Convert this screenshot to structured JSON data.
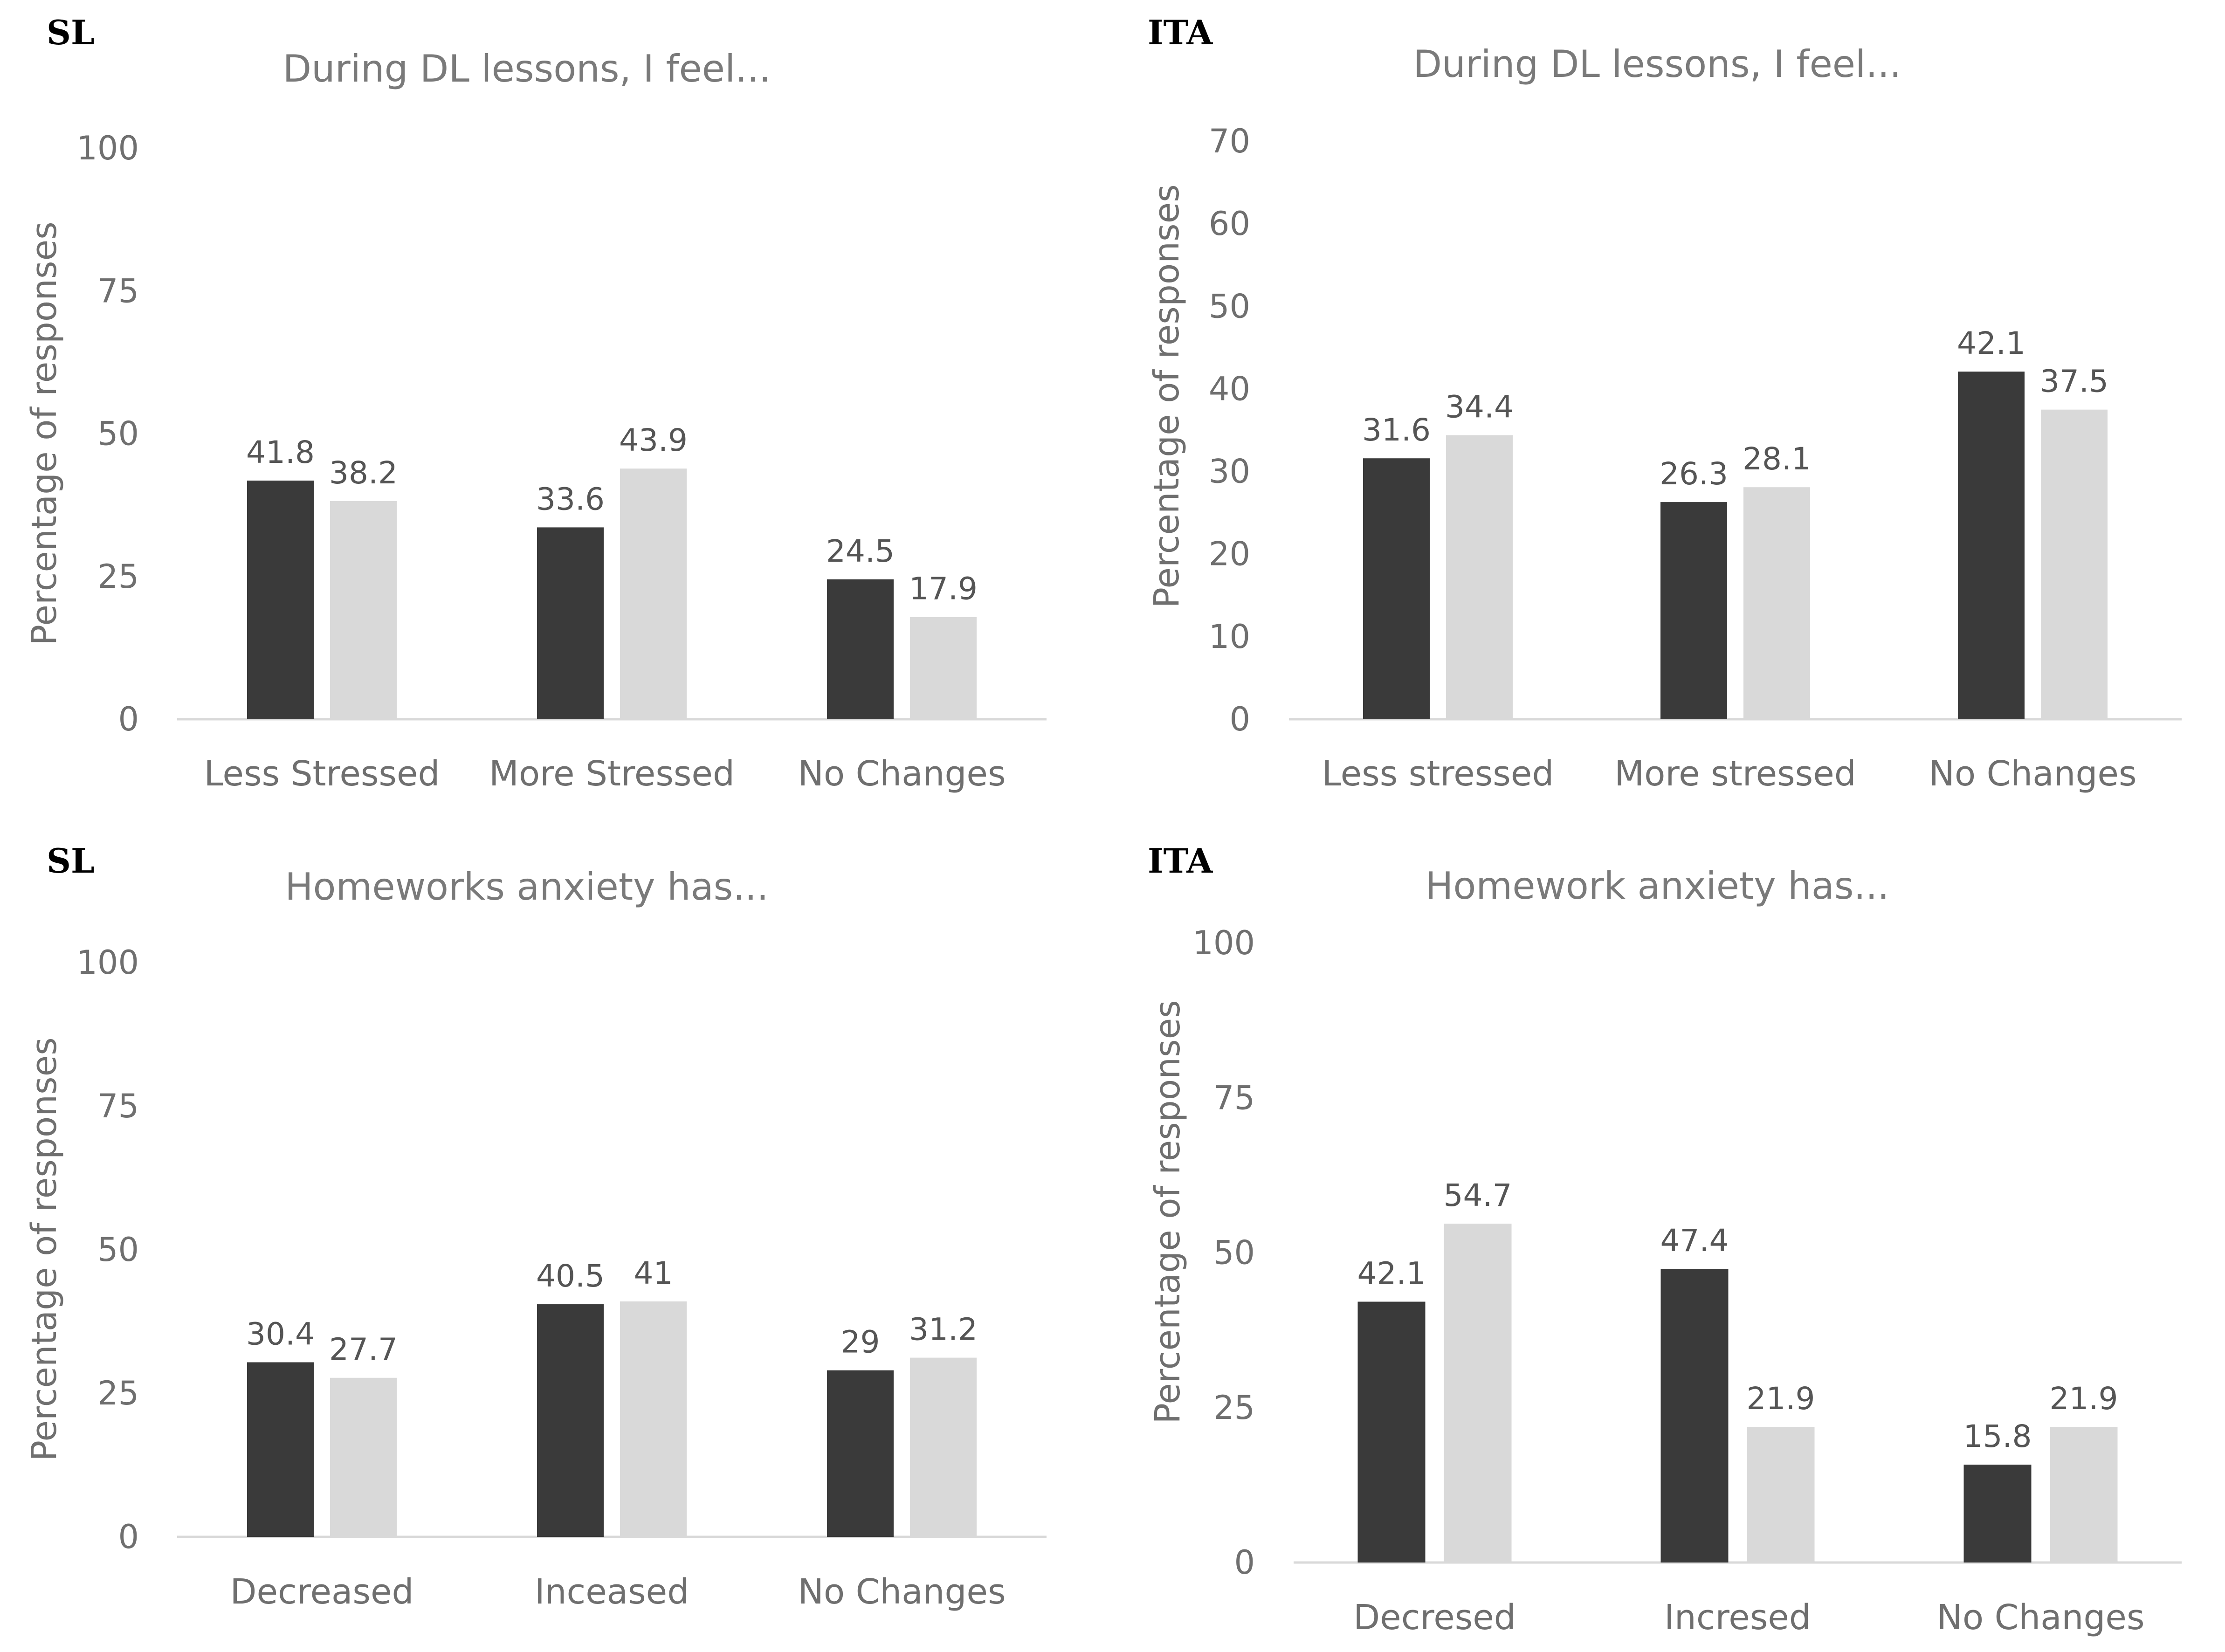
{
  "chart_data": [
    {
      "type": "bar",
      "country": "SL",
      "title": "During DL lessons, I feel...",
      "ylabel": "Percentage of responses",
      "xlabel": "",
      "ylim": [
        0,
        100
      ],
      "yticks": [
        0,
        25,
        50,
        75,
        100
      ],
      "categories": [
        "Less Stressed",
        "More Stressed",
        "No Changes"
      ],
      "series": [
        {
          "name": "dark",
          "color": "#3a3a3a",
          "values": [
            41.8,
            33.6,
            24.5
          ]
        },
        {
          "name": "light",
          "color": "#d9d9d9",
          "values": [
            38.2,
            43.9,
            17.9
          ]
        }
      ],
      "legend": "none"
    },
    {
      "type": "bar",
      "country": "ITA",
      "title": "During DL lessons, I feel...",
      "ylabel": "Percentage of responses",
      "xlabel": "",
      "ylim": [
        0,
        70
      ],
      "yticks": [
        0,
        10,
        20,
        30,
        40,
        50,
        60,
        70
      ],
      "categories": [
        "Less stressed",
        "More stressed",
        "No Changes"
      ],
      "series": [
        {
          "name": "dark",
          "color": "#3a3a3a",
          "values": [
            31.6,
            26.3,
            42.1
          ]
        },
        {
          "name": "light",
          "color": "#d9d9d9",
          "values": [
            34.4,
            28.1,
            37.5
          ]
        }
      ],
      "legend": "none"
    },
    {
      "type": "bar",
      "country": "SL",
      "title": "Homeworks anxiety has...",
      "ylabel": "Percentage of responses",
      "xlabel": "",
      "ylim": [
        0,
        100
      ],
      "yticks": [
        0,
        25,
        50,
        75,
        100
      ],
      "categories": [
        "Decreased",
        "Inceased",
        "No Changes"
      ],
      "series": [
        {
          "name": "dark",
          "color": "#3a3a3a",
          "values": [
            30.4,
            40.5,
            29
          ]
        },
        {
          "name": "light",
          "color": "#d9d9d9",
          "values": [
            27.7,
            41,
            31.2
          ]
        }
      ],
      "legend": "none"
    },
    {
      "type": "bar",
      "country": "ITA",
      "title": "Homework anxiety has...",
      "ylabel": "Percentage of responses",
      "xlabel": "",
      "ylim": [
        0,
        100
      ],
      "yticks": [
        0,
        25,
        50,
        75,
        100
      ],
      "categories": [
        "Decresed",
        "Incresed",
        "No Changes"
      ],
      "series": [
        {
          "name": "dark",
          "color": "#3a3a3a",
          "values": [
            42.1,
            47.4,
            15.8
          ]
        },
        {
          "name": "light",
          "color": "#d9d9d9",
          "values": [
            54.7,
            21.9,
            21.9
          ]
        }
      ],
      "legend": "none"
    }
  ]
}
